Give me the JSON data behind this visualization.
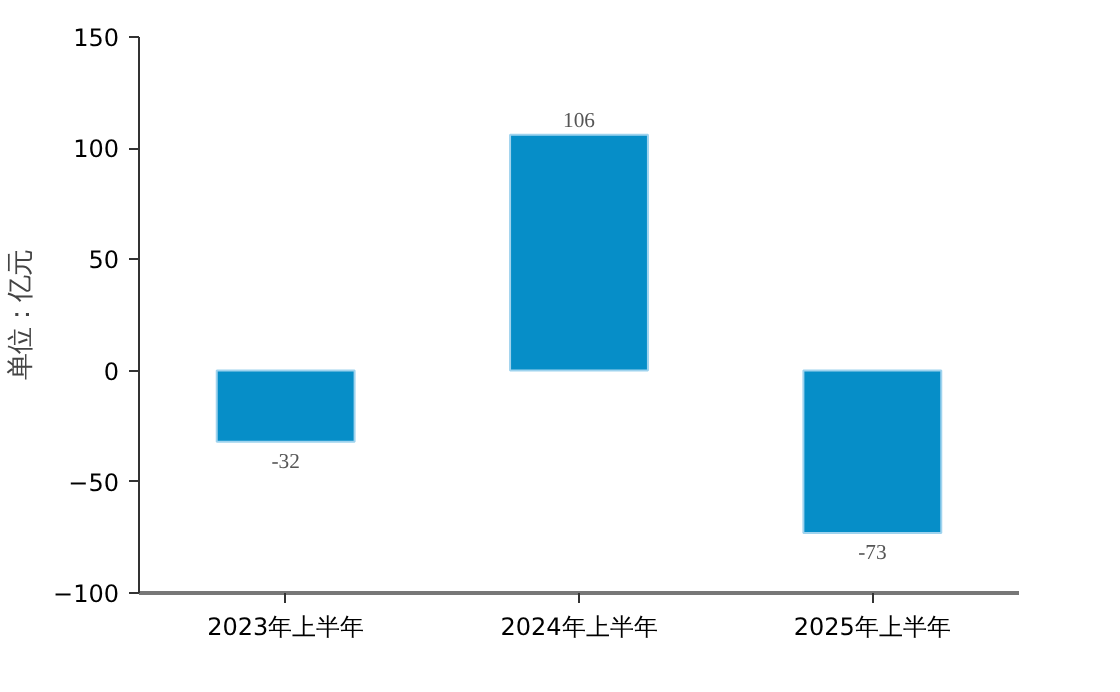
{
  "chart_data": {
    "type": "bar",
    "ylabel": "单位：亿元",
    "categories": [
      "2023年上半年",
      "2024年上半年",
      "2025年上半年"
    ],
    "values": [
      -32,
      106,
      -73
    ],
    "color": "#068ec8",
    "ylim": [
      -100,
      150
    ],
    "yticks": [
      -100,
      -50,
      0,
      50,
      100,
      150
    ],
    "grid": false,
    "data_labels": true
  }
}
